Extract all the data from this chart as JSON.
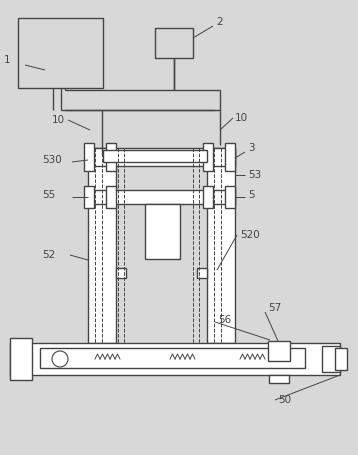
{
  "bg_color": "#d8d8d8",
  "line_color": "#444444",
  "lw": 1.0,
  "fig_w": 3.58,
  "fig_h": 4.55,
  "dpi": 100
}
